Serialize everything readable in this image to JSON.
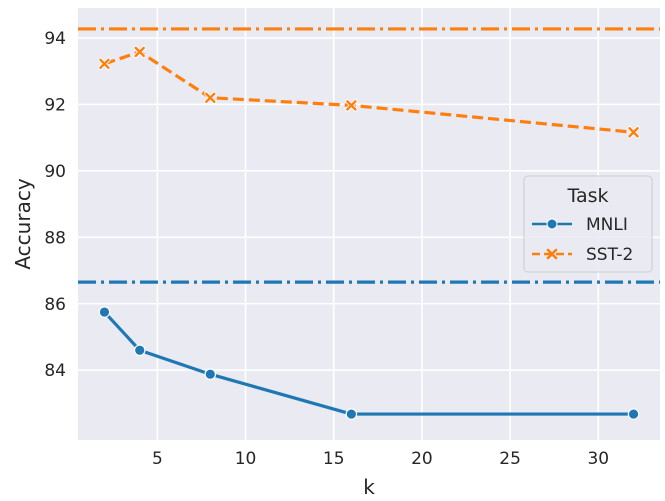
{
  "chart_data": {
    "type": "line",
    "title": "",
    "xlabel": "k",
    "ylabel": "Accuracy",
    "xlim": [
      0.5,
      33.5
    ],
    "ylim": [
      81.9,
      94.9
    ],
    "xticks": [
      5,
      10,
      15,
      20,
      25,
      30
    ],
    "yticks": [
      84,
      86,
      88,
      90,
      92,
      94
    ],
    "grid": true,
    "legend": {
      "title": "Task",
      "placement": "right"
    },
    "series": [
      {
        "name": "MNLI",
        "color": "#1f77b4",
        "marker": "circle",
        "linestyle": "solid",
        "x": [
          2,
          4,
          8,
          16,
          32
        ],
        "y": [
          85.75,
          84.6,
          83.88,
          82.68,
          82.68
        ]
      },
      {
        "name": "SST-2",
        "color": "#ff7f0e",
        "marker": "x",
        "linestyle": "dashed",
        "x": [
          2,
          4,
          8,
          16,
          32
        ],
        "y": [
          93.22,
          93.58,
          92.2,
          91.97,
          91.16
        ]
      }
    ],
    "reference_lines": [
      {
        "task": "MNLI",
        "y": 86.65,
        "color": "#1f77b4",
        "linestyle": "dashdot"
      },
      {
        "task": "SST-2",
        "y": 94.27,
        "color": "#ff7f0e",
        "linestyle": "dashdot"
      }
    ]
  }
}
